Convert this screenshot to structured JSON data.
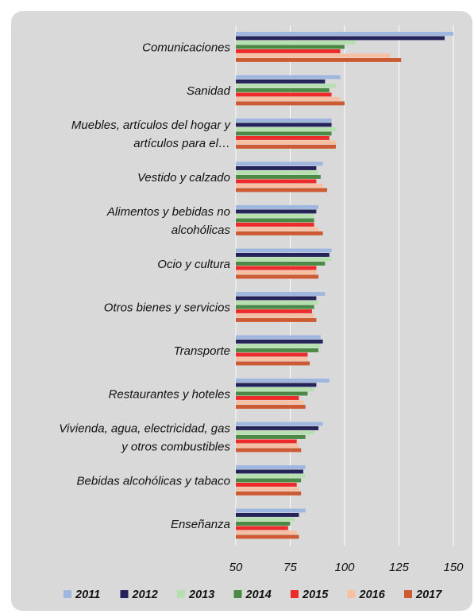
{
  "chart_data": {
    "type": "bar",
    "orientation": "horizontal",
    "title": "",
    "xlabel": "",
    "ylabel": "",
    "xlim": [
      50,
      150
    ],
    "xticks": [
      50,
      75,
      100,
      125,
      150
    ],
    "grid": true,
    "legend_position": "bottom",
    "colors": [
      "#9fb6de",
      "#24235a",
      "#b6e0b0",
      "#4b8a45",
      "#ee2b2b",
      "#f7c0a3",
      "#cc5a33"
    ],
    "categories": [
      [
        "Comunicaciones"
      ],
      [
        "Sanidad"
      ],
      [
        "Muebles, artículos del hogar y",
        "artículos para el…"
      ],
      [
        "Vestido y calzado"
      ],
      [
        "Alimentos y bebidas no",
        "alcohólicas"
      ],
      [
        "Ocio y cultura"
      ],
      [
        "Otros bienes y servicios"
      ],
      [
        "Transporte"
      ],
      [
        "Restaurantes y hoteles"
      ],
      [
        "Vivienda, agua, electricidad, gas",
        "y otros combustibles"
      ],
      [
        "Bebidas alcohólicas y tabaco"
      ],
      [
        "Enseñanza"
      ]
    ],
    "series": [
      {
        "name": "2011",
        "values": [
          150,
          98,
          94,
          90,
          88,
          94,
          91,
          89,
          93,
          90,
          82,
          82
        ]
      },
      {
        "name": "2012",
        "values": [
          146,
          91,
          94,
          87,
          87,
          93,
          87,
          90,
          87,
          88,
          81,
          79
        ]
      },
      {
        "name": "2013",
        "values": [
          105,
          96,
          96,
          88,
          86,
          94,
          88,
          89,
          86,
          86,
          82,
          77
        ]
      },
      {
        "name": "2014",
        "values": [
          100,
          93,
          94,
          89,
          86,
          91,
          86,
          88,
          83,
          82,
          80,
          75
        ]
      },
      {
        "name": "2015",
        "values": [
          98,
          94,
          93,
          87,
          86,
          87,
          85,
          83,
          79,
          78,
          78,
          74
        ]
      },
      {
        "name": "2016",
        "values": [
          121,
          98,
          96,
          90,
          88,
          87,
          86,
          83,
          81,
          79,
          79,
          78
        ]
      },
      {
        "name": "2017",
        "values": [
          126,
          100,
          96,
          92,
          90,
          88,
          87,
          84,
          82,
          80,
          80,
          79
        ]
      }
    ]
  }
}
